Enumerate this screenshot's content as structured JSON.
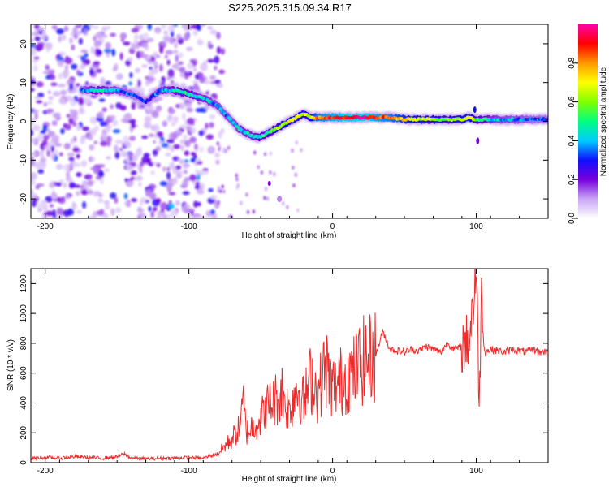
{
  "title": "S225.2025.315.09.34.R17",
  "chart_data": [
    {
      "type": "heatmap",
      "xlabel": "Height of straight line (km)",
      "ylabel": "Frequency (Hz)",
      "xlim": [
        -210,
        150
      ],
      "ylim": [
        -25,
        25
      ],
      "xticks": [
        -200,
        -100,
        0,
        100
      ],
      "yticks": [
        -20,
        -10,
        0,
        10,
        20
      ],
      "colorbar": {
        "label": "Normalized spectral amplitude",
        "range": [
          0,
          1
        ],
        "ticks": [
          0.0,
          0.2,
          0.4,
          0.6,
          0.8
        ],
        "tick_labels": [
          "0.0",
          "0.2",
          "0.4",
          "0.6",
          "0.8"
        ],
        "colors": [
          "#ffffff",
          "#c9a5f5",
          "#7700dd",
          "#1010ff",
          "#00ccff",
          "#00ff80",
          "#80ff00",
          "#ffff00",
          "#ff9900",
          "#ff0000",
          "#ff00aa"
        ]
      },
      "ridge": {
        "x": [
          -175,
          -165,
          -150,
          -140,
          -130,
          -120,
          -110,
          -100,
          -90,
          -80,
          -70,
          -65,
          -60,
          -55,
          -50,
          -45,
          -40,
          -35,
          -30,
          -25,
          -20,
          -15,
          -10,
          0,
          10,
          20,
          30,
          40,
          50,
          60,
          70,
          80,
          90,
          95,
          100,
          110,
          120,
          130,
          140,
          150
        ],
        "y": [
          8,
          8,
          8,
          7,
          5,
          8,
          8,
          7,
          6,
          4,
          0,
          -2,
          -3,
          -4,
          -4,
          -3,
          -2,
          -1,
          0,
          1,
          2,
          1,
          1,
          1,
          1,
          1,
          1,
          1,
          0.5,
          0.5,
          0.5,
          0.5,
          0.5,
          1,
          0.5,
          0.5,
          0.5,
          0.5,
          0.5,
          0.5
        ],
        "amplitude": [
          0.3,
          0.45,
          0.35,
          0.3,
          0.25,
          0.35,
          0.45,
          0.45,
          0.4,
          0.35,
          0.35,
          0.4,
          0.4,
          0.4,
          0.45,
          0.5,
          0.55,
          0.6,
          0.65,
          0.65,
          0.6,
          0.65,
          0.8,
          0.85,
          0.9,
          0.95,
          0.85,
          0.8,
          0.7,
          0.65,
          0.6,
          0.55,
          0.65,
          0.7,
          0.55,
          0.4,
          0.35,
          0.35,
          0.3,
          0.3
        ]
      }
    },
    {
      "type": "line",
      "xlabel": "Height of straight line (km)",
      "ylabel": "SNR (10 * v/v)",
      "xlim": [
        -210,
        150
      ],
      "ylim": [
        0,
        1300
      ],
      "xticks": [
        -200,
        -100,
        0,
        100
      ],
      "yticks": [
        0,
        200,
        400,
        600,
        800,
        1000,
        1200
      ],
      "series": [
        {
          "color": "#ee2a2a",
          "x": [
            -210,
            -200,
            -190,
            -180,
            -170,
            -160,
            -150,
            -145,
            -140,
            -130,
            -120,
            -110,
            -100,
            -90,
            -80,
            -75,
            -70,
            -65,
            -62,
            -60,
            -55,
            -50,
            -45,
            -40,
            -35,
            -30,
            -25,
            -20,
            -15,
            -10,
            -5,
            0,
            5,
            10,
            15,
            20,
            25,
            30,
            35,
            40,
            45,
            50,
            55,
            60,
            65,
            70,
            75,
            80,
            85,
            90,
            95,
            100,
            102,
            104,
            106,
            110,
            115,
            120,
            125,
            130,
            135,
            140,
            145,
            150
          ],
          "y": [
            30,
            35,
            30,
            40,
            35,
            30,
            40,
            60,
            30,
            25,
            30,
            30,
            35,
            30,
            60,
            110,
            160,
            230,
            390,
            200,
            250,
            300,
            380,
            420,
            480,
            330,
            520,
            400,
            570,
            460,
            650,
            500,
            540,
            580,
            600,
            680,
            690,
            720,
            880,
            760,
            750,
            740,
            760,
            750,
            780,
            760,
            740,
            800,
            760,
            780,
            820,
            1300,
            400,
            1230,
            740,
            760,
            750,
            740,
            760,
            750,
            740,
            760,
            735,
            750
          ]
        }
      ]
    }
  ]
}
